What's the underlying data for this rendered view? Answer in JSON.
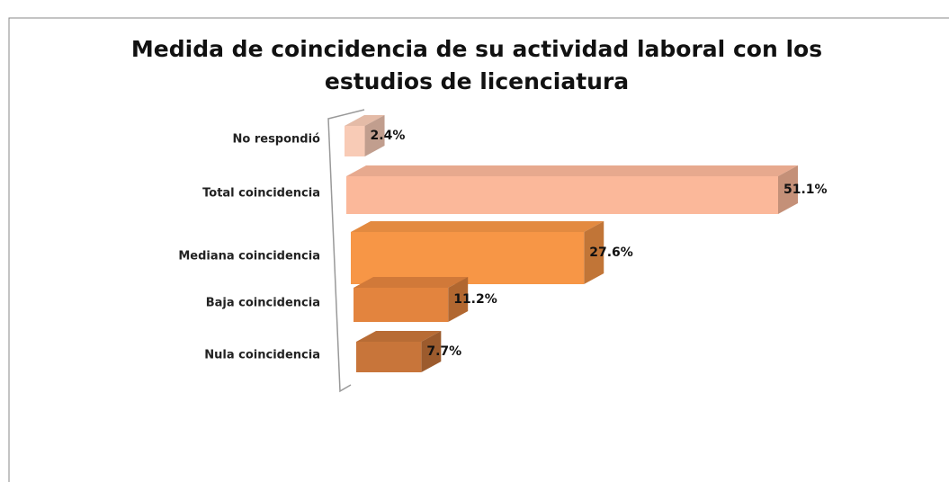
{
  "chart_data": {
    "type": "bar3d",
    "title": "Medida de coincidencia de su actividad laboral con los estudios de licenciatura",
    "categories": [
      "No respondió",
      "Total coincidencia",
      "Mediana coincidencia",
      "Baja coincidencia",
      "Nula coincidencia"
    ],
    "values": [
      2.4,
      51.1,
      27.6,
      11.2,
      7.7
    ],
    "value_labels": [
      "2.4%",
      "51.1%",
      "27.6%",
      "11.2%",
      "7.7%"
    ],
    "colors": [
      "#f8cbb6",
      "#fbb89a",
      "#f79646",
      "#e3843e",
      "#c8753a"
    ]
  }
}
